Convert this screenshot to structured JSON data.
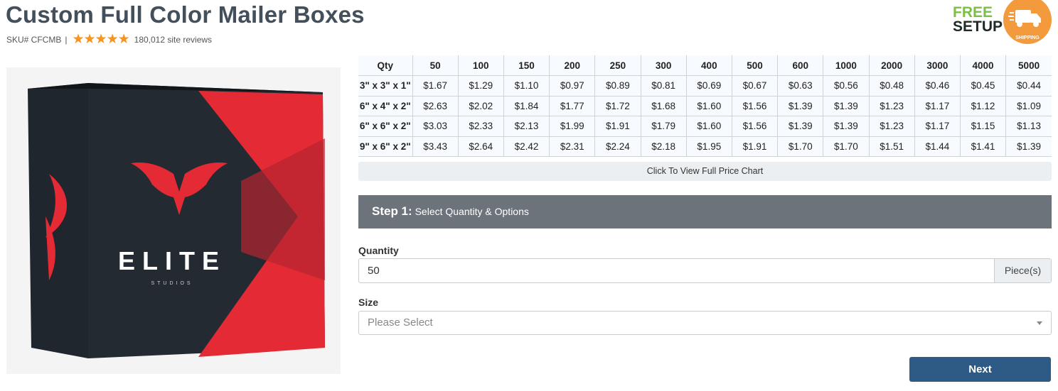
{
  "product": {
    "title": "Custom Full Color Mailer Boxes",
    "sku": "SKU# CFCMB",
    "separator": "|",
    "stars": "★★★★★",
    "rating": 5,
    "reviews": "180,012 site reviews"
  },
  "badge": {
    "free": "FREE",
    "setup": "SETUP",
    "top": "FREE",
    "shipping": "SHIPPING",
    "icon": "truck-icon",
    "green": "#7bc043",
    "orange": "#f39a3c"
  },
  "image": {
    "logo": "ELITE",
    "sub": "STUDIOS"
  },
  "price_table": {
    "headers": [
      "Qty",
      "50",
      "100",
      "150",
      "200",
      "250",
      "300",
      "400",
      "500",
      "600",
      "1000",
      "2000",
      "3000",
      "4000",
      "5000"
    ],
    "rows": [
      [
        "3\" x 3\" x 1\"",
        "$1.67",
        "$1.29",
        "$1.10",
        "$0.97",
        "$0.89",
        "$0.81",
        "$0.69",
        "$0.67",
        "$0.63",
        "$0.56",
        "$0.48",
        "$0.46",
        "$0.45",
        "$0.44"
      ],
      [
        "6\" x 4\" x 2\"",
        "$2.63",
        "$2.02",
        "$1.84",
        "$1.77",
        "$1.72",
        "$1.68",
        "$1.60",
        "$1.56",
        "$1.39",
        "$1.39",
        "$1.23",
        "$1.17",
        "$1.12",
        "$1.09"
      ],
      [
        "6\" x 6\" x 2\"",
        "$3.03",
        "$2.33",
        "$2.13",
        "$1.99",
        "$1.91",
        "$1.79",
        "$1.60",
        "$1.56",
        "$1.39",
        "$1.39",
        "$1.23",
        "$1.17",
        "$1.15",
        "$1.13"
      ],
      [
        "9\" x 6\" x 2\"",
        "$3.43",
        "$2.64",
        "$2.42",
        "$2.31",
        "$2.24",
        "$2.18",
        "$1.95",
        "$1.91",
        "$1.70",
        "$1.70",
        "$1.51",
        "$1.44",
        "$1.41",
        "$1.39"
      ]
    ],
    "full_chart_label": "Click To View Full Price Chart"
  },
  "step": {
    "number": "Step 1:",
    "label": "Select Quantity & Options"
  },
  "form": {
    "quantity_label": "Quantity",
    "quantity_value": "50",
    "quantity_unit": "Piece(s)",
    "size_label": "Size",
    "size_placeholder": "Please Select",
    "next_label": "Next"
  }
}
